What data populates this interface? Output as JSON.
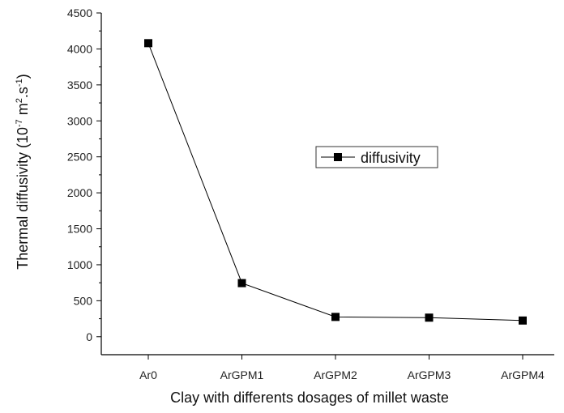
{
  "chart_data": {
    "type": "line",
    "categories": [
      "Ar0",
      "ArGPM1",
      "ArGPM2",
      "ArGPM3",
      "ArGPM4"
    ],
    "series": [
      {
        "name": "diffusivity",
        "values": [
          4080,
          745,
          275,
          265,
          225
        ],
        "color": "#000000"
      }
    ],
    "title": "",
    "xlabel": "Clay with differents dosages of millet waste",
    "ylabel_main": "Thermal diffusivity (10",
    "ylabel_exp1": "-7",
    "ylabel_mid": " m",
    "ylabel_exp2": "2",
    "ylabel_mid2": ".s",
    "ylabel_exp3": "-1",
    "ylabel_end": ")",
    "ylim": [
      -250,
      4500
    ],
    "yticks": [
      0,
      500,
      1000,
      1500,
      2000,
      2500,
      3000,
      3500,
      4000,
      4500
    ],
    "legend": {
      "position": "center-right",
      "label": "diffusivity"
    },
    "grid": false
  }
}
